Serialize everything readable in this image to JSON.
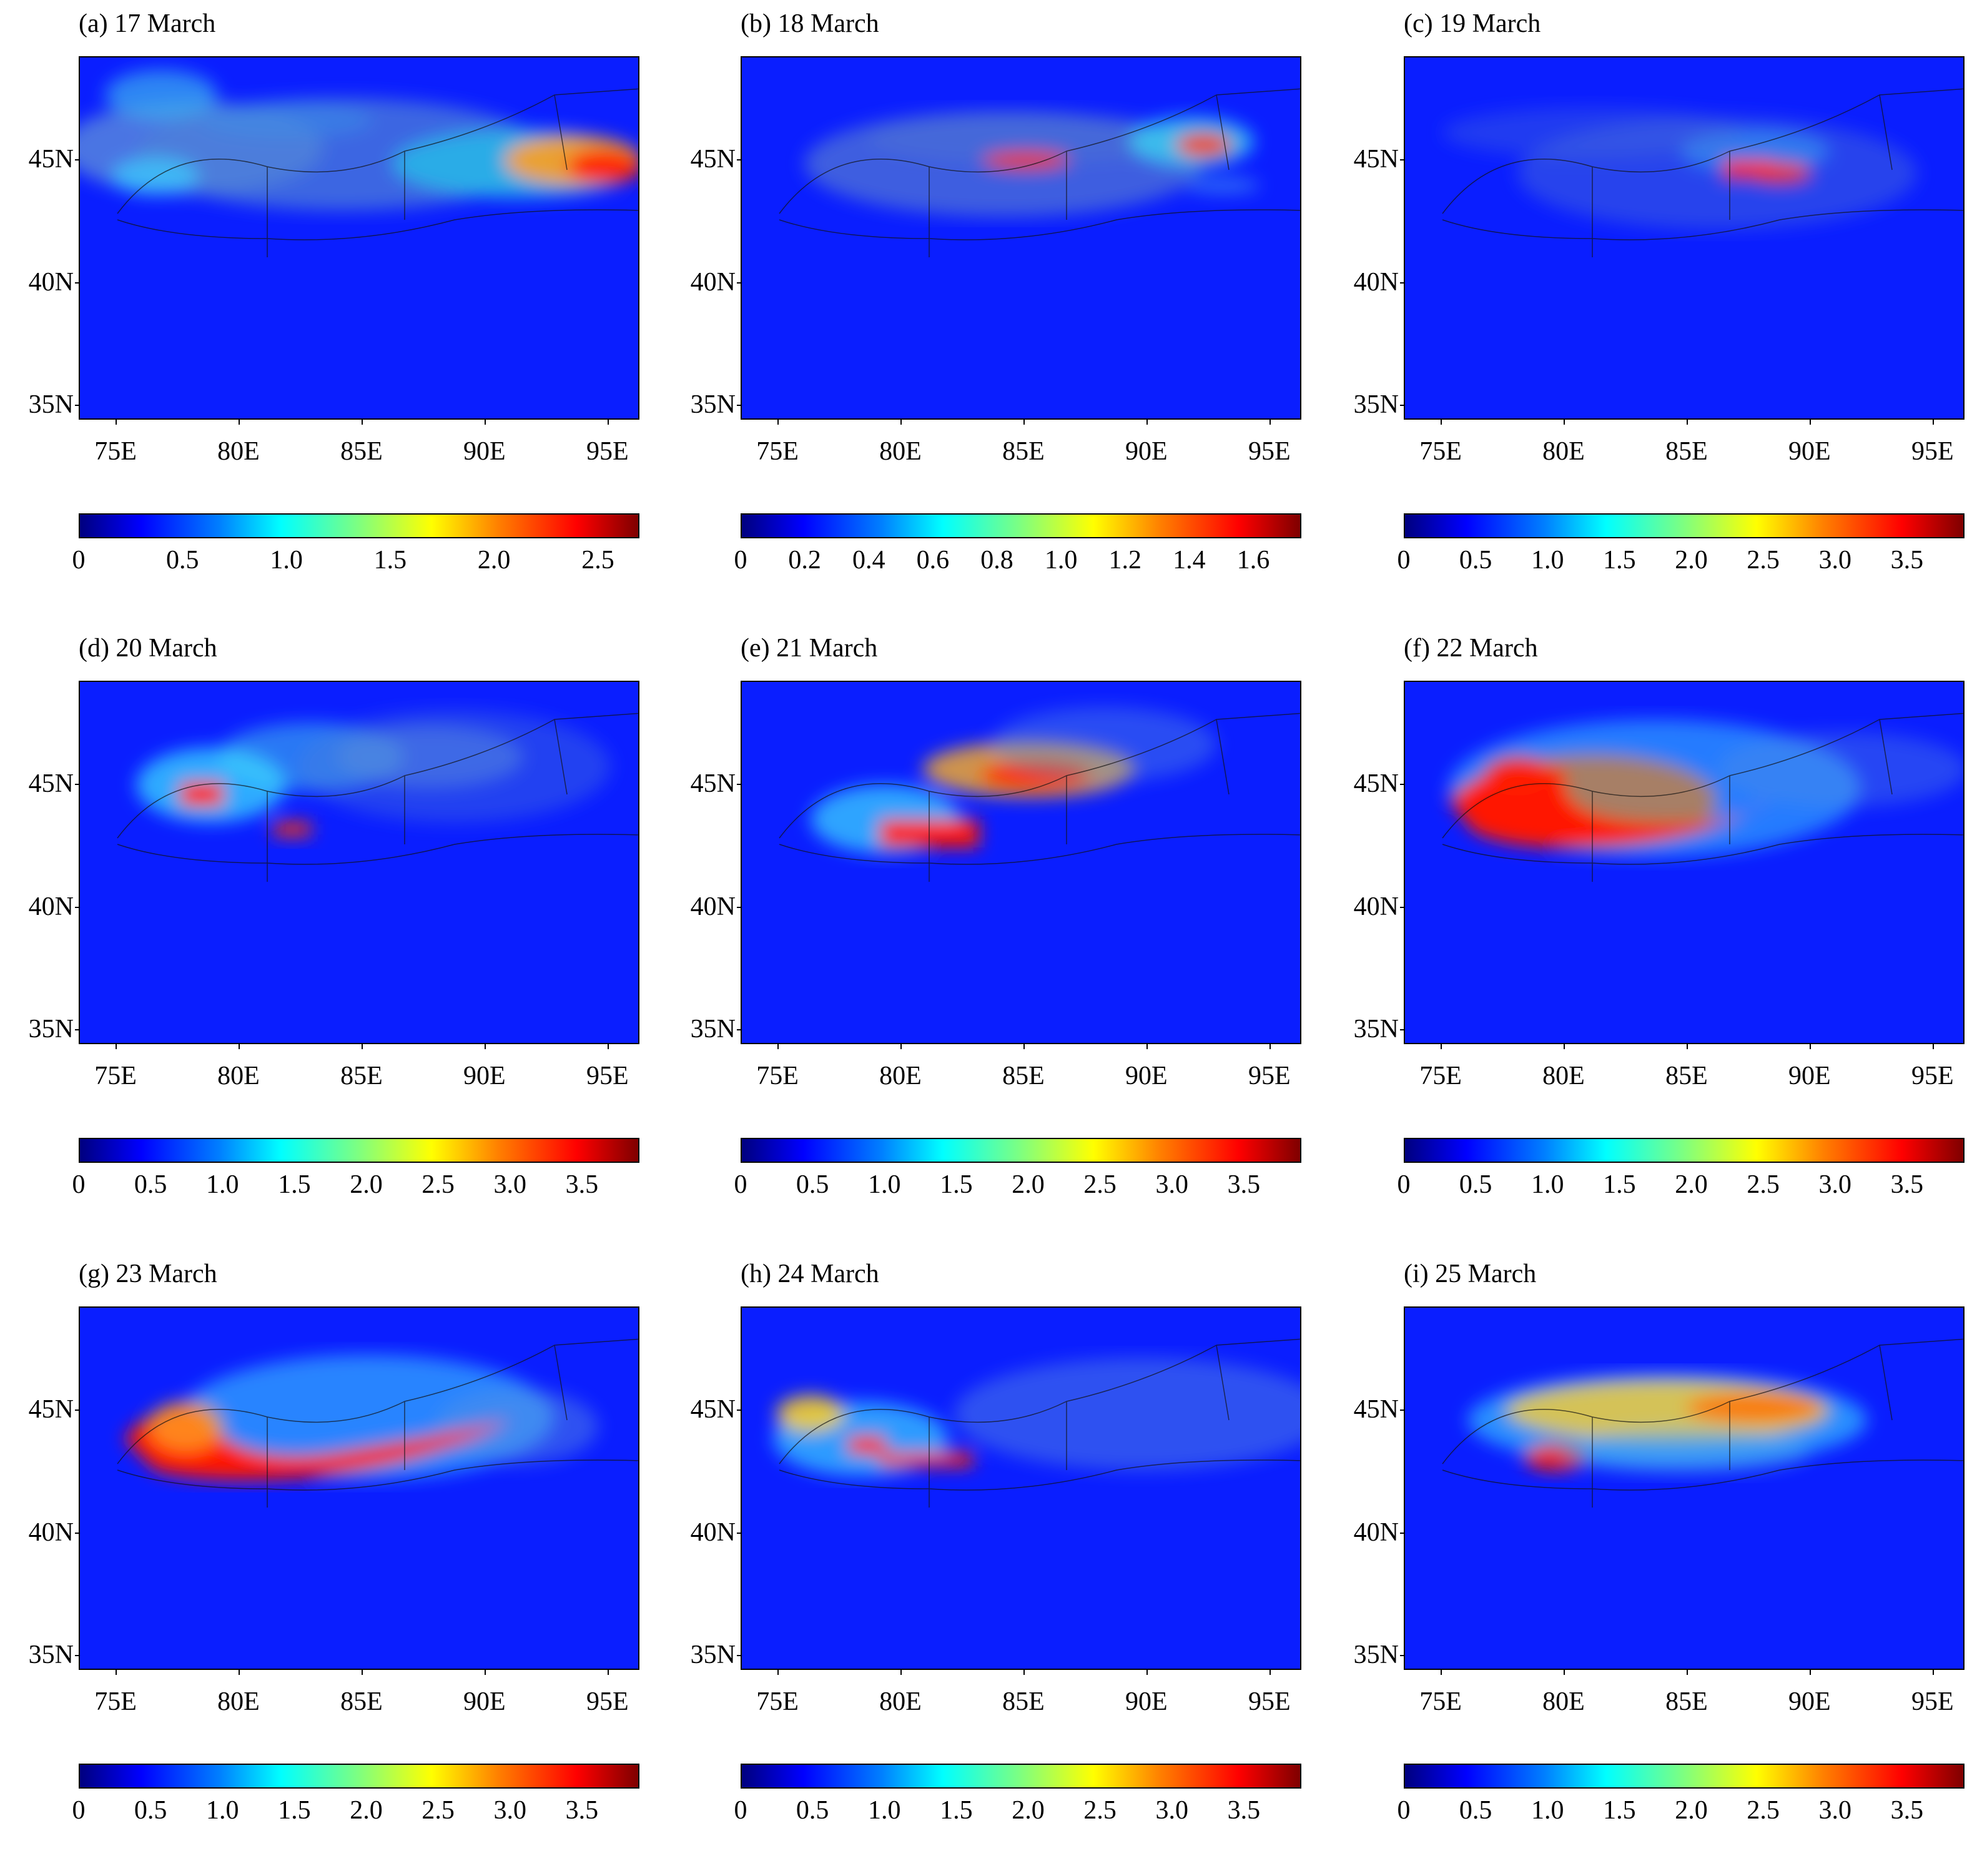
{
  "chart_data": [
    {
      "type": "heatmap",
      "title": "(a) 17 March",
      "x_ticks": [
        "75E",
        "80E",
        "85E",
        "90E",
        "95E"
      ],
      "y_ticks": [
        "35N",
        "40N",
        "45N"
      ],
      "colorbar": {
        "ticks": [
          "0",
          "0.5",
          "1.0",
          "1.5",
          "2.0",
          "2.5"
        ],
        "range": [
          0,
          2.7
        ]
      }
    },
    {
      "type": "heatmap",
      "title": "(b) 18 March",
      "x_ticks": [
        "75E",
        "80E",
        "85E",
        "90E",
        "95E"
      ],
      "y_ticks": [
        "35N",
        "40N",
        "45N"
      ],
      "colorbar": {
        "ticks": [
          "0",
          "0.2",
          "0.4",
          "0.6",
          "0.8",
          "1.0",
          "1.2",
          "1.4",
          "1.6"
        ],
        "range": [
          0,
          1.75
        ]
      }
    },
    {
      "type": "heatmap",
      "title": "(c) 19 March",
      "x_ticks": [
        "75E",
        "80E",
        "85E",
        "90E",
        "95E"
      ],
      "y_ticks": [
        "35N",
        "40N",
        "45N"
      ],
      "colorbar": {
        "ticks": [
          "0",
          "0.5",
          "1.0",
          "1.5",
          "2.0",
          "2.5",
          "3.0",
          "3.5"
        ],
        "range": [
          0,
          3.9
        ]
      }
    },
    {
      "type": "heatmap",
      "title": "(d) 20 March",
      "x_ticks": [
        "75E",
        "80E",
        "85E",
        "90E",
        "95E"
      ],
      "y_ticks": [
        "35N",
        "40N",
        "45N"
      ],
      "colorbar": {
        "ticks": [
          "0",
          "0.5",
          "1.0",
          "1.5",
          "2.0",
          "2.5",
          "3.0",
          "3.5"
        ],
        "range": [
          0,
          3.9
        ]
      }
    },
    {
      "type": "heatmap",
      "title": "(e) 21 March",
      "x_ticks": [
        "75E",
        "80E",
        "85E",
        "90E",
        "95E"
      ],
      "y_ticks": [
        "35N",
        "40N",
        "45N"
      ],
      "colorbar": {
        "ticks": [
          "0",
          "0.5",
          "1.0",
          "1.5",
          "2.0",
          "2.5",
          "3.0",
          "3.5"
        ],
        "range": [
          0,
          3.9
        ]
      }
    },
    {
      "type": "heatmap",
      "title": "(f) 22 March",
      "x_ticks": [
        "75E",
        "80E",
        "85E",
        "90E",
        "95E"
      ],
      "y_ticks": [
        "35N",
        "40N",
        "45N"
      ],
      "colorbar": {
        "ticks": [
          "0",
          "0.5",
          "1.0",
          "1.5",
          "2.0",
          "2.5",
          "3.0",
          "3.5"
        ],
        "range": [
          0,
          3.9
        ]
      }
    },
    {
      "type": "heatmap",
      "title": "(g) 23 March",
      "x_ticks": [
        "75E",
        "80E",
        "85E",
        "90E",
        "95E"
      ],
      "y_ticks": [
        "35N",
        "40N",
        "45N"
      ],
      "colorbar": {
        "ticks": [
          "0",
          "0.5",
          "1.0",
          "1.5",
          "2.0",
          "2.5",
          "3.0",
          "3.5"
        ],
        "range": [
          0,
          3.9
        ]
      }
    },
    {
      "type": "heatmap",
      "title": "(h) 24 March",
      "x_ticks": [
        "75E",
        "80E",
        "85E",
        "90E",
        "95E"
      ],
      "y_ticks": [
        "35N",
        "40N",
        "45N"
      ],
      "colorbar": {
        "ticks": [
          "0",
          "0.5",
          "1.0",
          "1.5",
          "2.0",
          "2.5",
          "3.0",
          "3.5"
        ],
        "range": [
          0,
          3.9
        ]
      }
    },
    {
      "type": "heatmap",
      "title": "(i) 25 March",
      "x_ticks": [
        "75E",
        "80E",
        "85E",
        "90E",
        "95E"
      ],
      "y_ticks": [
        "35N",
        "40N",
        "45N"
      ],
      "colorbar": {
        "ticks": [
          "0",
          "0.5",
          "1.0",
          "1.5",
          "2.0",
          "2.5",
          "3.0",
          "3.5"
        ],
        "range": [
          0,
          3.9
        ]
      }
    }
  ]
}
